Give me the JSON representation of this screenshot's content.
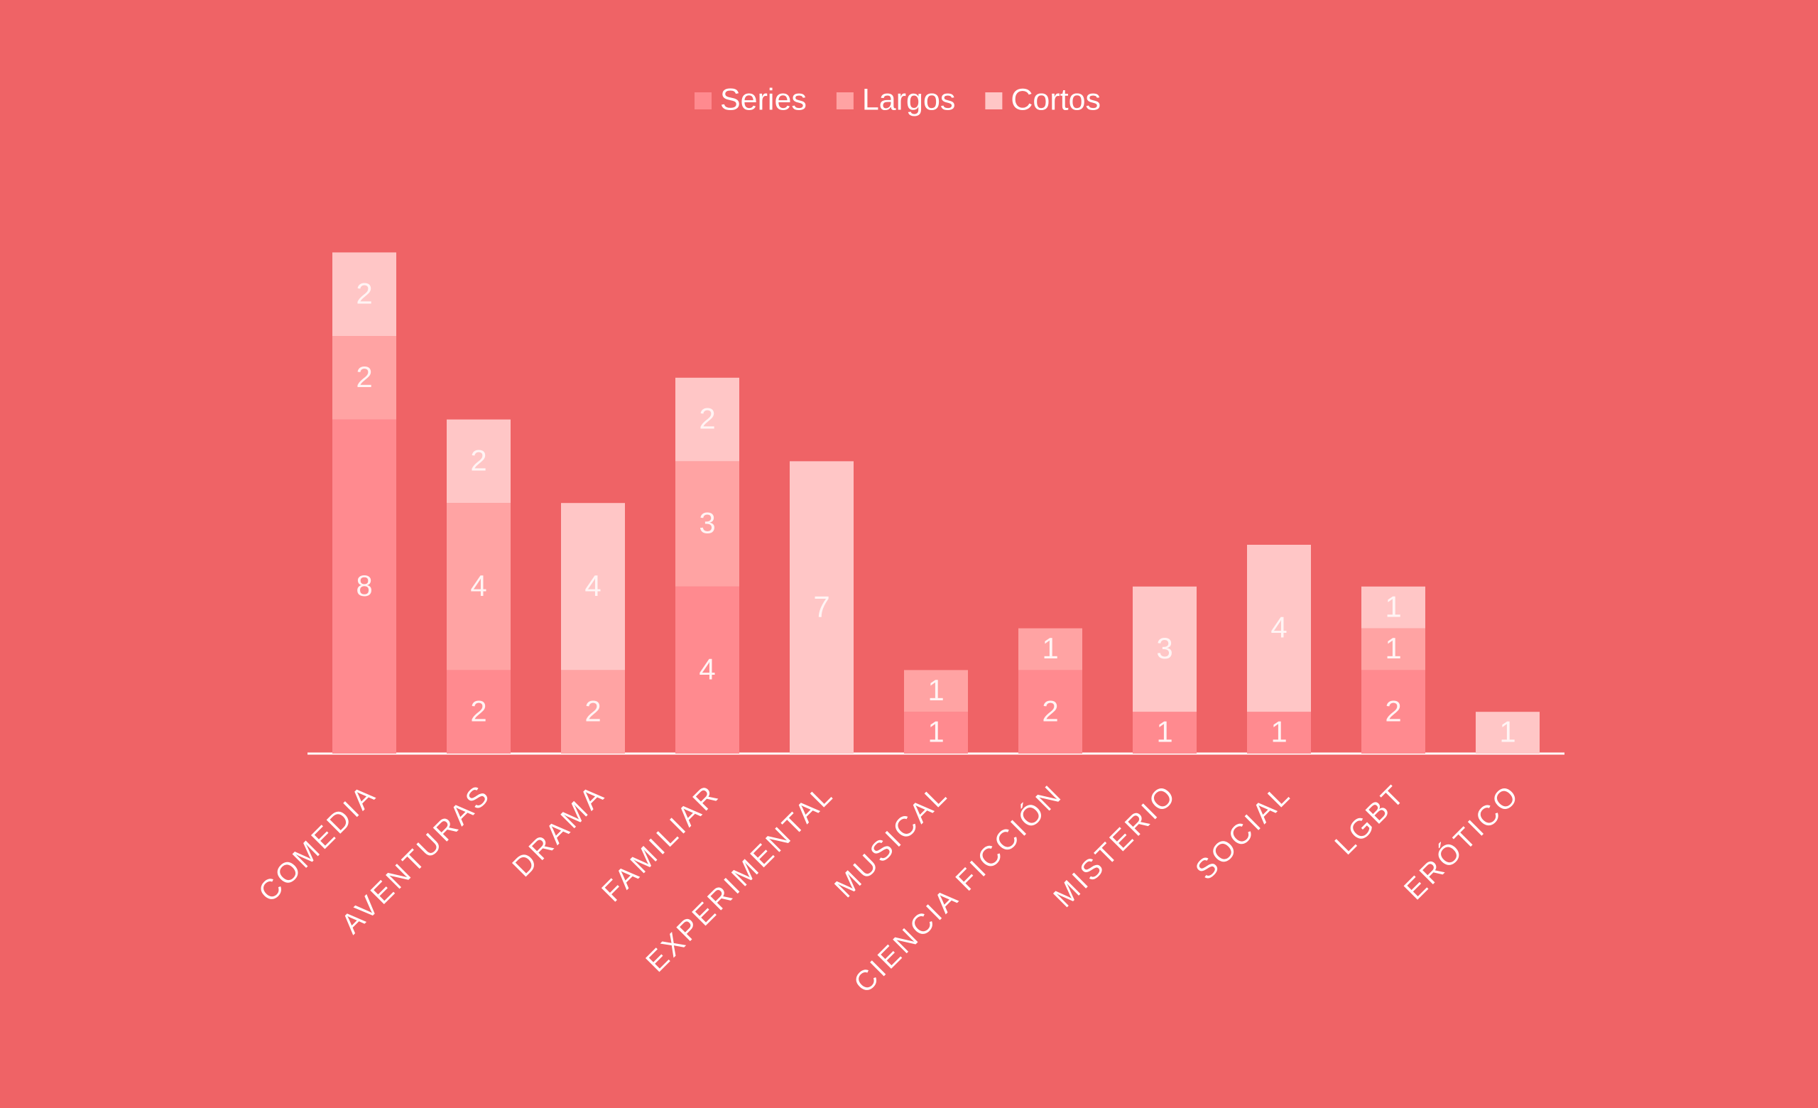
{
  "chart_data": {
    "type": "stacked-bar",
    "categories": [
      "COMEDIA",
      "AVENTURAS",
      "DRAMA",
      "FAMILIAR",
      "EXPERIMENTAL",
      "MUSICAL",
      "CIENCIA FICCIÓN",
      "MISTERIO",
      "SOCIAL",
      "LGBT",
      "ERÓTICO"
    ],
    "series": [
      {
        "name": "Series",
        "color": "#ff8a8f",
        "values": [
          8,
          2,
          null,
          4,
          null,
          1,
          2,
          1,
          1,
          2,
          null
        ]
      },
      {
        "name": "Largos",
        "color": "#ffa3a3",
        "values": [
          2,
          4,
          2,
          3,
          null,
          1,
          1,
          null,
          null,
          1,
          null
        ]
      },
      {
        "name": "Cortos",
        "color": "#ffc6c6",
        "values": [
          2,
          2,
          4,
          2,
          7,
          null,
          null,
          3,
          4,
          1,
          1
        ]
      }
    ],
    "legend": "top"
  }
}
